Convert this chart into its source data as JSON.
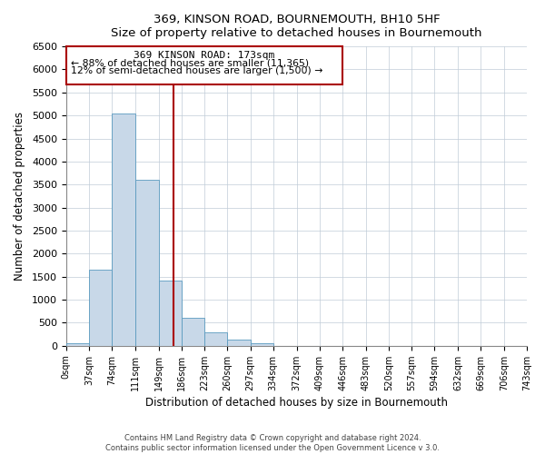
{
  "title": "369, KINSON ROAD, BOURNEMOUTH, BH10 5HF",
  "subtitle": "Size of property relative to detached houses in Bournemouth",
  "xlabel": "Distribution of detached houses by size in Bournemouth",
  "ylabel": "Number of detached properties",
  "bar_edges": [
    0,
    37,
    74,
    111,
    149,
    186,
    223,
    260,
    297,
    334,
    372,
    409,
    446,
    483,
    520,
    557,
    594,
    632,
    669,
    706,
    743
  ],
  "bar_heights": [
    50,
    1650,
    5050,
    3600,
    1420,
    600,
    290,
    140,
    50,
    0,
    0,
    0,
    0,
    0,
    0,
    0,
    0,
    0,
    0,
    0
  ],
  "bar_color": "#c8d8e8",
  "bar_edgecolor": "#5a9abf",
  "vline_x": 173,
  "vline_color": "#aa0000",
  "ylim": [
    0,
    6500
  ],
  "yticks": [
    0,
    500,
    1000,
    1500,
    2000,
    2500,
    3000,
    3500,
    4000,
    4500,
    5000,
    5500,
    6000,
    6500
  ],
  "annotation_title": "369 KINSON ROAD: 173sqm",
  "annotation_line1": "← 88% of detached houses are smaller (11,365)",
  "annotation_line2": "12% of semi-detached houses are larger (1,500) →",
  "annotation_box_color": "#aa0000",
  "footnote1": "Contains HM Land Registry data © Crown copyright and database right 2024.",
  "footnote2": "Contains public sector information licensed under the Open Government Licence v 3.0.",
  "tick_labels": [
    "0sqm",
    "37sqm",
    "74sqm",
    "111sqm",
    "149sqm",
    "186sqm",
    "223sqm",
    "260sqm",
    "297sqm",
    "334sqm",
    "372sqm",
    "409sqm",
    "446sqm",
    "483sqm",
    "520sqm",
    "557sqm",
    "594sqm",
    "632sqm",
    "669sqm",
    "706sqm",
    "743sqm"
  ],
  "figsize": [
    6.0,
    5.0
  ],
  "dpi": 100
}
